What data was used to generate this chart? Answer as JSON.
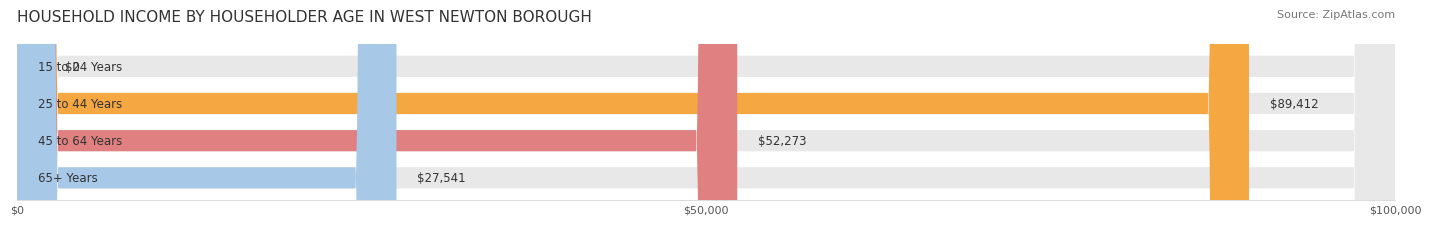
{
  "title": "HOUSEHOLD INCOME BY HOUSEHOLDER AGE IN WEST NEWTON BOROUGH",
  "source": "Source: ZipAtlas.com",
  "categories": [
    "15 to 24 Years",
    "25 to 44 Years",
    "45 to 64 Years",
    "65+ Years"
  ],
  "values": [
    0,
    89412,
    52273,
    27541
  ],
  "bar_colors": [
    "#f2a0b0",
    "#f5a742",
    "#e08080",
    "#a8c8e8"
  ],
  "bar_bg_color": "#f0f0f0",
  "value_labels": [
    "$0",
    "$89,412",
    "$52,273",
    "$27,541"
  ],
  "x_ticks": [
    0,
    50000,
    100000
  ],
  "x_tick_labels": [
    "$0",
    "$50,000",
    "$100,000"
  ],
  "xlim": [
    0,
    100000
  ],
  "background_color": "#ffffff",
  "title_fontsize": 11,
  "source_fontsize": 8,
  "label_fontsize": 8.5,
  "value_fontsize": 8.5,
  "tick_fontsize": 8
}
